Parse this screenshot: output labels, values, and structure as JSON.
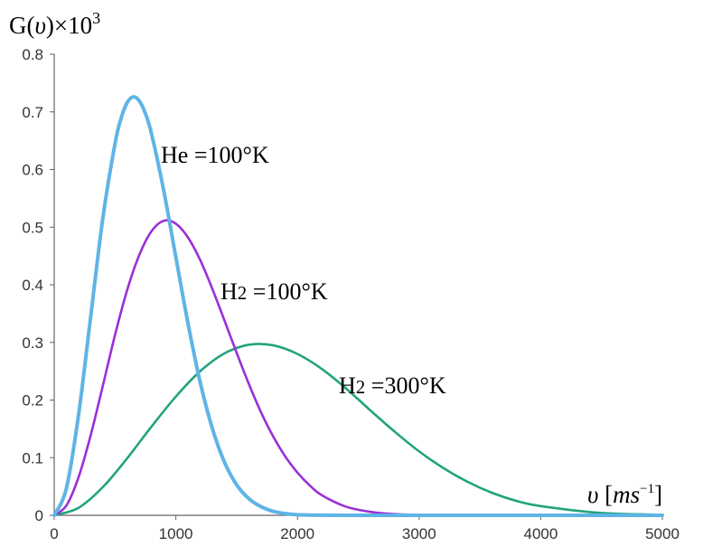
{
  "chart_data": {
    "type": "line",
    "ylabel": "G(υ)×10³",
    "ylabel_parts": {
      "main": "G(",
      "var": "υ",
      "close": ")×10",
      "sup": "3"
    },
    "xlabel": "υ [ms⁻¹]",
    "xlabel_parts": {
      "var": "υ",
      "open": " [",
      "unit": "ms",
      "sup": "−1",
      "close": "]"
    },
    "xlim": [
      0,
      5000
    ],
    "ylim": [
      0,
      0.8
    ],
    "xticks": [
      0,
      1000,
      2000,
      3000,
      4000,
      5000
    ],
    "xtick_labels": [
      "0",
      "1000",
      "2000",
      "3000",
      "4000",
      "5000"
    ],
    "yticks": [
      0,
      0.1,
      0.2,
      0.3,
      0.4,
      0.5,
      0.6,
      0.7,
      0.8
    ],
    "ytick_labels": [
      "0",
      "0.1",
      "0.2",
      "0.3",
      "0.4",
      "0.5",
      "0.6",
      "0.7",
      "0.8"
    ],
    "grid": false,
    "series": [
      {
        "name": "He =100°K",
        "label_parts": {
          "mol": "He",
          "sub": "",
          "eq": " =100°K"
        },
        "color": "#5fb4e6",
        "x": [
          0,
          100,
          200,
          300,
          400,
          500,
          550,
          600,
          650,
          700,
          750,
          800,
          900,
          1000,
          1100,
          1200,
          1300,
          1400,
          1500,
          1600,
          1700,
          1800,
          1900,
          2000,
          2200,
          2500,
          3000,
          4000,
          5000
        ],
        "values": [
          0,
          0.047,
          0.174,
          0.345,
          0.516,
          0.645,
          0.689,
          0.716,
          0.726,
          0.719,
          0.697,
          0.662,
          0.564,
          0.448,
          0.333,
          0.231,
          0.151,
          0.092,
          0.053,
          0.029,
          0.015,
          0.007,
          0.003,
          0.001,
          0.0002,
          0,
          0,
          0,
          0
        ]
      },
      {
        "name": "H2 =100°K",
        "label_parts": {
          "mol": "H",
          "sub": "2",
          "eq": " =100°K"
        },
        "color": "#9b2fd6",
        "x": [
          0,
          100,
          200,
          300,
          400,
          500,
          600,
          700,
          800,
          900,
          1000,
          1100,
          1200,
          1300,
          1400,
          1500,
          1600,
          1700,
          1800,
          1900,
          2000,
          2100,
          2200,
          2400,
          2600,
          2800,
          3000,
          3500,
          4000,
          5000
        ],
        "values": [
          0,
          0.017,
          0.066,
          0.139,
          0.225,
          0.313,
          0.391,
          0.452,
          0.493,
          0.511,
          0.506,
          0.482,
          0.443,
          0.393,
          0.338,
          0.282,
          0.228,
          0.179,
          0.137,
          0.102,
          0.074,
          0.052,
          0.035,
          0.015,
          0.006,
          0.002,
          0.001,
          0,
          0,
          0
        ]
      },
      {
        "name": "H2 =300°K",
        "label_parts": {
          "mol": "H",
          "sub": "2",
          "eq": " =300°K"
        },
        "color": "#22a37e",
        "x": [
          0,
          200,
          400,
          600,
          800,
          1000,
          1200,
          1400,
          1600,
          1800,
          2000,
          2200,
          2400,
          2600,
          2800,
          3000,
          3200,
          3400,
          3600,
          3800,
          4000,
          4500,
          5000
        ],
        "values": [
          0,
          0.013,
          0.049,
          0.099,
          0.154,
          0.206,
          0.25,
          0.281,
          0.296,
          0.295,
          0.28,
          0.254,
          0.22,
          0.182,
          0.145,
          0.111,
          0.082,
          0.058,
          0.039,
          0.025,
          0.016,
          0.004,
          0.001
        ]
      }
    ]
  }
}
